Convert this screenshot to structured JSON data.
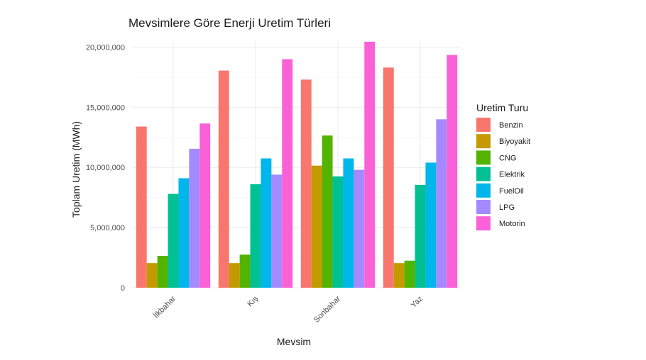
{
  "chart_data": {
    "type": "bar",
    "title": "Mevsimlere Göre Enerji Uretim Türleri",
    "xlabel": "Mevsim",
    "ylabel": "Toplam Uretim (MWh)",
    "ylim": [
      0,
      20500000
    ],
    "yticks": [
      0,
      5000000,
      10000000,
      15000000,
      20000000
    ],
    "ytick_labels": [
      "0",
      "5,000,000",
      "10,000,000",
      "15,000,000",
      "20,000,000"
    ],
    "categories": [
      "İlkbahar",
      "Kış",
      "Sonbahar",
      "Yaz"
    ],
    "legend_title": "Uretim Turu",
    "legend_position": "right",
    "grid": true,
    "series": [
      {
        "name": "Benzin",
        "color": "#F8766D",
        "values": [
          13400000,
          18050000,
          17300000,
          18300000
        ]
      },
      {
        "name": "Biyoyakit",
        "color": "#C49A00",
        "values": [
          2050000,
          2050000,
          10150000,
          2050000
        ]
      },
      {
        "name": "CNG",
        "color": "#53B400",
        "values": [
          2650000,
          2750000,
          12650000,
          2250000
        ]
      },
      {
        "name": "Elektrik",
        "color": "#00C094",
        "values": [
          7800000,
          8600000,
          9250000,
          8550000
        ]
      },
      {
        "name": "FuelOil",
        "color": "#00B6EB",
        "values": [
          9100000,
          10750000,
          10750000,
          10400000
        ]
      },
      {
        "name": "LPG",
        "color": "#A58AFF",
        "values": [
          11550000,
          9400000,
          9800000,
          14000000
        ]
      },
      {
        "name": "Motorin",
        "color": "#FB61D7",
        "values": [
          13650000,
          19000000,
          20450000,
          19350000
        ]
      }
    ]
  }
}
